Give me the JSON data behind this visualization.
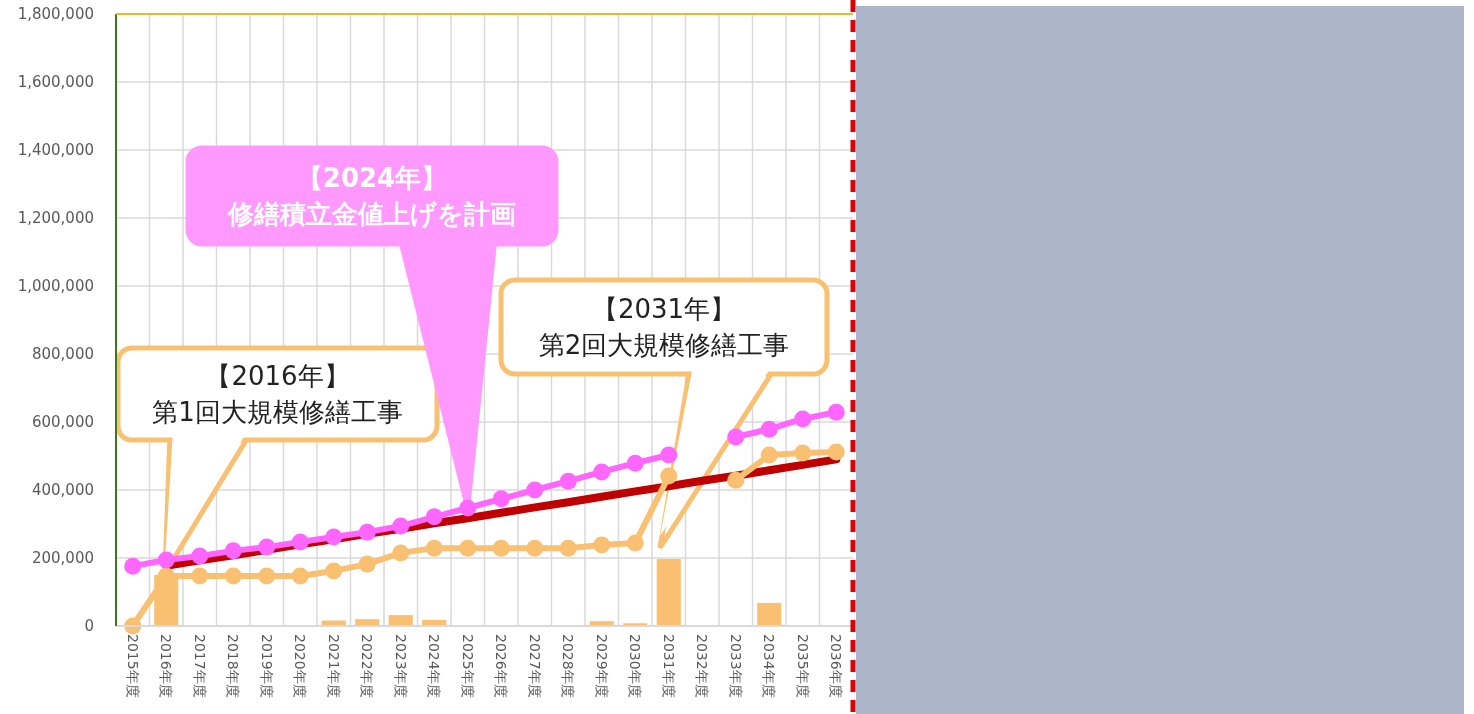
{
  "chart_data": {
    "type": "line",
    "categories": [
      "2015年度",
      "2016年度",
      "2017年度",
      "2018年度",
      "2019年度",
      "2020年度",
      "2021年度",
      "2022年度",
      "2023年度",
      "2024年度",
      "2025年度",
      "2026年度",
      "2027年度",
      "2028年度",
      "2029年度",
      "2030年度",
      "2031年度",
      "2032年度",
      "2033年度",
      "2034年度",
      "2035年度",
      "2036年度"
    ],
    "ylim": [
      0,
      1800000
    ],
    "yticks": [
      {
        "value": 0,
        "label": "0"
      },
      {
        "value": 200000,
        "label": "200,000"
      },
      {
        "value": 400000,
        "label": "400,000"
      },
      {
        "value": 600000,
        "label": "600,000"
      },
      {
        "value": 800000,
        "label": "800,000"
      },
      {
        "value": 1000000,
        "label": "1,000,000"
      },
      {
        "value": 1200000,
        "label": "1,200,000"
      },
      {
        "value": 1400000,
        "label": "1,400,000"
      },
      {
        "value": 1600000,
        "label": "1,600,000"
      },
      {
        "value": 1800000,
        "label": "1,800,000"
      }
    ],
    "grid": true,
    "series": [
      {
        "type": "bar",
        "color": "#f8c070",
        "values": [
          0,
          150000,
          0,
          0,
          0,
          0,
          16000,
          20000,
          32000,
          18000,
          2000,
          0,
          0,
          0,
          14000,
          8000,
          197000,
          0,
          0,
          68000,
          3000,
          0
        ]
      },
      {
        "color": "#c00000",
        "marker": "none",
        "values": [
          null,
          177000,
          193000,
          208000,
          224000,
          240000,
          255000,
          271000,
          286000,
          302000,
          317000,
          333000,
          349000,
          364000,
          380000,
          396000,
          411000,
          427000,
          442000,
          458000,
          474000,
          490000
        ]
      },
      {
        "color": "#f8c070",
        "marker": "circle",
        "values": [
          0,
          147000,
          147000,
          147000,
          147000,
          147000,
          162000,
          182000,
          215000,
          229000,
          229000,
          229000,
          229000,
          229000,
          238000,
          244000,
          441000,
          null,
          429000,
          503000,
          509000,
          512000
        ]
      },
      {
        "color": "#ff66ff",
        "marker": "circle",
        "values": [
          176000,
          194000,
          206000,
          221000,
          232000,
          247000,
          262000,
          276000,
          294000,
          321000,
          347000,
          374000,
          400000,
          426000,
          453000,
          479000,
          503000,
          null,
          556000,
          579000,
          609000,
          629000
        ]
      }
    ],
    "annotations": [
      "【2016年】第1回大規模修繕工事",
      {
        "text": "【2024年】修繕積立金値上げを計画",
        "x": "2025年度",
        "y": 347000
      },
      "【2031年】第2回大規模修繕工事"
    ]
  }
}
